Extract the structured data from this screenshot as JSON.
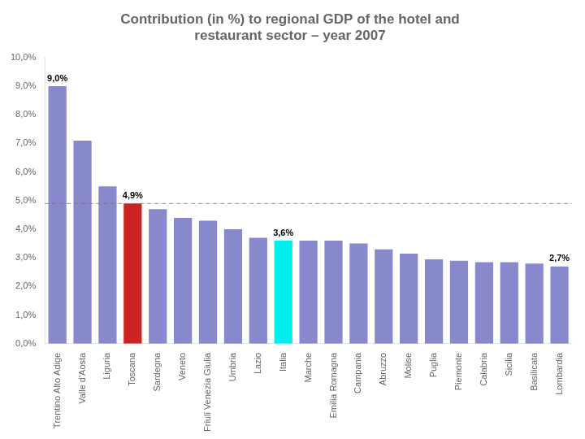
{
  "chart_data": {
    "type": "bar",
    "title": [
      "Contribution (in %) to regional GDP of the hotel and",
      "restaurant sector – year 2007"
    ],
    "categories": [
      "Trentino Alto Adige",
      "Valle d'Aosta",
      "Liguria",
      "Toscana",
      "Sardegna",
      "Veneto",
      "Friuli Venezia Giulia",
      "Umbria",
      "Lazio",
      "Italia",
      "Marche",
      "Emilia Romagna",
      "Campania",
      "Abruzzo",
      "Molise",
      "Puglia",
      "Piemonte",
      "Calabria",
      "Sicilia",
      "Basilicata",
      "Lombardia"
    ],
    "values": [
      9.0,
      7.1,
      5.5,
      4.9,
      4.7,
      4.4,
      4.3,
      4.0,
      3.7,
      3.6,
      3.6,
      3.6,
      3.5,
      3.3,
      3.15,
      2.95,
      2.9,
      2.85,
      2.85,
      2.8,
      2.7
    ],
    "colors": [
      "#8888cc",
      "#8888cc",
      "#8888cc",
      "#cc2222",
      "#8888cc",
      "#8888cc",
      "#8888cc",
      "#8888cc",
      "#8888cc",
      "#00eeee",
      "#8888cc",
      "#8888cc",
      "#8888cc",
      "#8888cc",
      "#8888cc",
      "#8888cc",
      "#8888cc",
      "#8888cc",
      "#8888cc",
      "#8888cc",
      "#8888cc"
    ],
    "reference_line": 4.9,
    "annotations": [
      {
        "category": "Trentino Alto Adige",
        "text": "9,0%"
      },
      {
        "category": "Toscana",
        "text": "4,9%"
      },
      {
        "category": "Italia",
        "text": "3,6%"
      },
      {
        "category": "Lombardia",
        "text": "2,7%"
      }
    ],
    "ylim": [
      0,
      10.0
    ],
    "yticks": [
      {
        "value": 0.0,
        "label": "0,0%"
      },
      {
        "value": 1.0,
        "label": "1,0%"
      },
      {
        "value": 2.0,
        "label": "2,0%"
      },
      {
        "value": 3.0,
        "label": "3,0%"
      },
      {
        "value": 4.0,
        "label": "4,0%"
      },
      {
        "value": 5.0,
        "label": "5,0%"
      },
      {
        "value": 6.0,
        "label": "6,0%"
      },
      {
        "value": 7.0,
        "label": "7,0%"
      },
      {
        "value": 8.0,
        "label": "8,0%"
      },
      {
        "value": 9.0,
        "label": "9,0%"
      },
      {
        "value": 10.0,
        "label": "10,0%"
      }
    ],
    "grid": false
  }
}
